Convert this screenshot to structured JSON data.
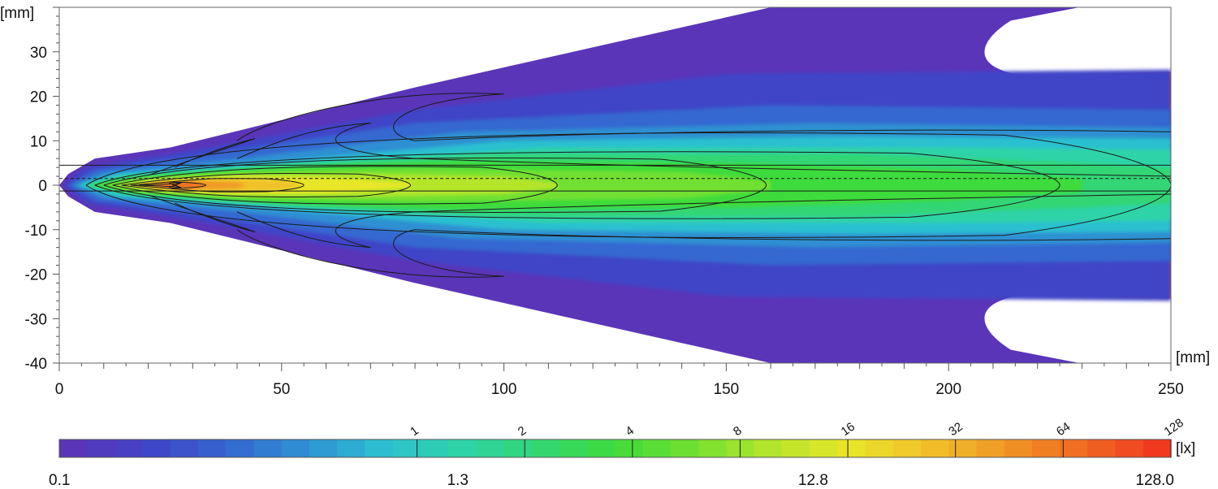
{
  "chart_data": {
    "type": "heatmap",
    "xlabel": "[mm]",
    "ylabel": "[mm]",
    "xlim": [
      0,
      250
    ],
    "ylim": [
      -40,
      40
    ],
    "x_ticks": [
      0,
      50,
      100,
      150,
      200,
      250
    ],
    "y_ticks": [
      30,
      20,
      10,
      0,
      -10,
      -20,
      -30,
      -40
    ],
    "x_tick_labels": [
      "0",
      "50",
      "100",
      "150",
      "200",
      "250"
    ],
    "y_tick_labels": [
      "30",
      "20",
      "10",
      "0",
      "-10",
      "-20",
      "-30",
      "-40"
    ],
    "colorbar": {
      "unit": "[lx]",
      "scale": "log",
      "min": 0.1,
      "max": 128.0,
      "labels": [
        {
          "value": 0.1,
          "text": "0.1"
        },
        {
          "value": 1.3,
          "text": "1.3"
        },
        {
          "value": 12.8,
          "text": "12.8"
        },
        {
          "value": 128.0,
          "text": "128.0"
        }
      ],
      "contour_levels": [
        {
          "value": 1,
          "text": "1"
        },
        {
          "value": 2,
          "text": "2"
        },
        {
          "value": 4,
          "text": "4"
        },
        {
          "value": 8,
          "text": "8"
        },
        {
          "value": 16,
          "text": "16"
        },
        {
          "value": 32,
          "text": "32"
        },
        {
          "value": 64,
          "text": "64"
        },
        {
          "value": 128,
          "text": "128"
        }
      ],
      "colors": [
        "#5a35b8",
        "#3f44c7",
        "#3567d0",
        "#2f90d2",
        "#2cc0d0",
        "#2ed3a8",
        "#33d675",
        "#3edb3a",
        "#72e030",
        "#b4e52c",
        "#e8e628",
        "#f0c22a",
        "#f09a25",
        "#f06b22",
        "#ef3a20"
      ]
    },
    "beam": {
      "core_peak": {
        "x": 26,
        "y": 0,
        "value": 120
      },
      "description_levels_x_extent_on_axis": [
        {
          "level": 1,
          "x_end": 250
        },
        {
          "level": 2,
          "x_end": 225
        },
        {
          "level": 4,
          "x_end": 159
        },
        {
          "level": 8,
          "x_end": 112
        },
        {
          "level": 16,
          "x_end": 79
        },
        {
          "level": 32,
          "x_end": 55
        },
        {
          "level": 64,
          "x_end": 33
        }
      ]
    },
    "grid": false,
    "legend": "bottom"
  }
}
